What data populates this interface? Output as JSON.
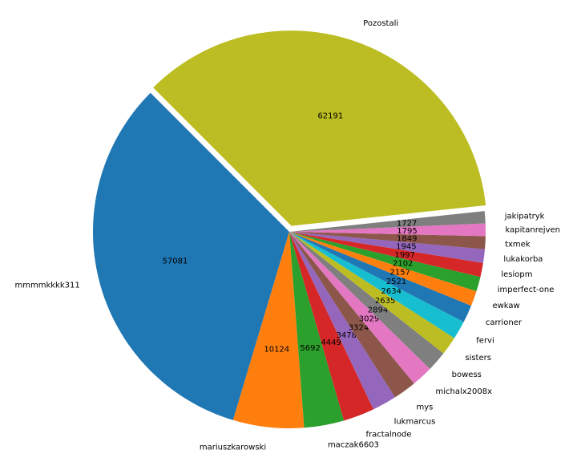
{
  "chart_data": {
    "type": "pie",
    "title": "",
    "categories": [
      "mmmmkkkk311",
      "mariuszkarowski",
      "maczak6603",
      "fractalnode",
      "lukmarcus",
      "mys",
      "michalx2008x",
      "bowess",
      "sisters",
      "fervi",
      "carrioner",
      "ewkaw",
      "imperfect-one",
      "lesiopm",
      "lukakorba",
      "txmek",
      "kapitanrejven",
      "jakipatryk",
      "Pozostali"
    ],
    "values": [
      57081,
      10124,
      5692,
      4449,
      3478,
      3324,
      3029,
      2894,
      2635,
      2634,
      2521,
      2157,
      2102,
      1997,
      1945,
      1849,
      1795,
      1727,
      62191
    ],
    "colors": [
      "#1f77b4",
      "#ff7f0e",
      "#2ca02c",
      "#d62728",
      "#9467bd",
      "#8c564b",
      "#e377c2",
      "#7f7f7f",
      "#bcbd22",
      "#17becf",
      "#1f77b4",
      "#ff7f0e",
      "#2ca02c",
      "#d62728",
      "#9467bd",
      "#8c564b",
      "#e377c2",
      "#7f7f7f",
      "#bcbd22"
    ],
    "start_angle_deg": 135,
    "direction": "counterclockwise",
    "exploded": [
      "Pozostali"
    ],
    "legend": "none"
  }
}
